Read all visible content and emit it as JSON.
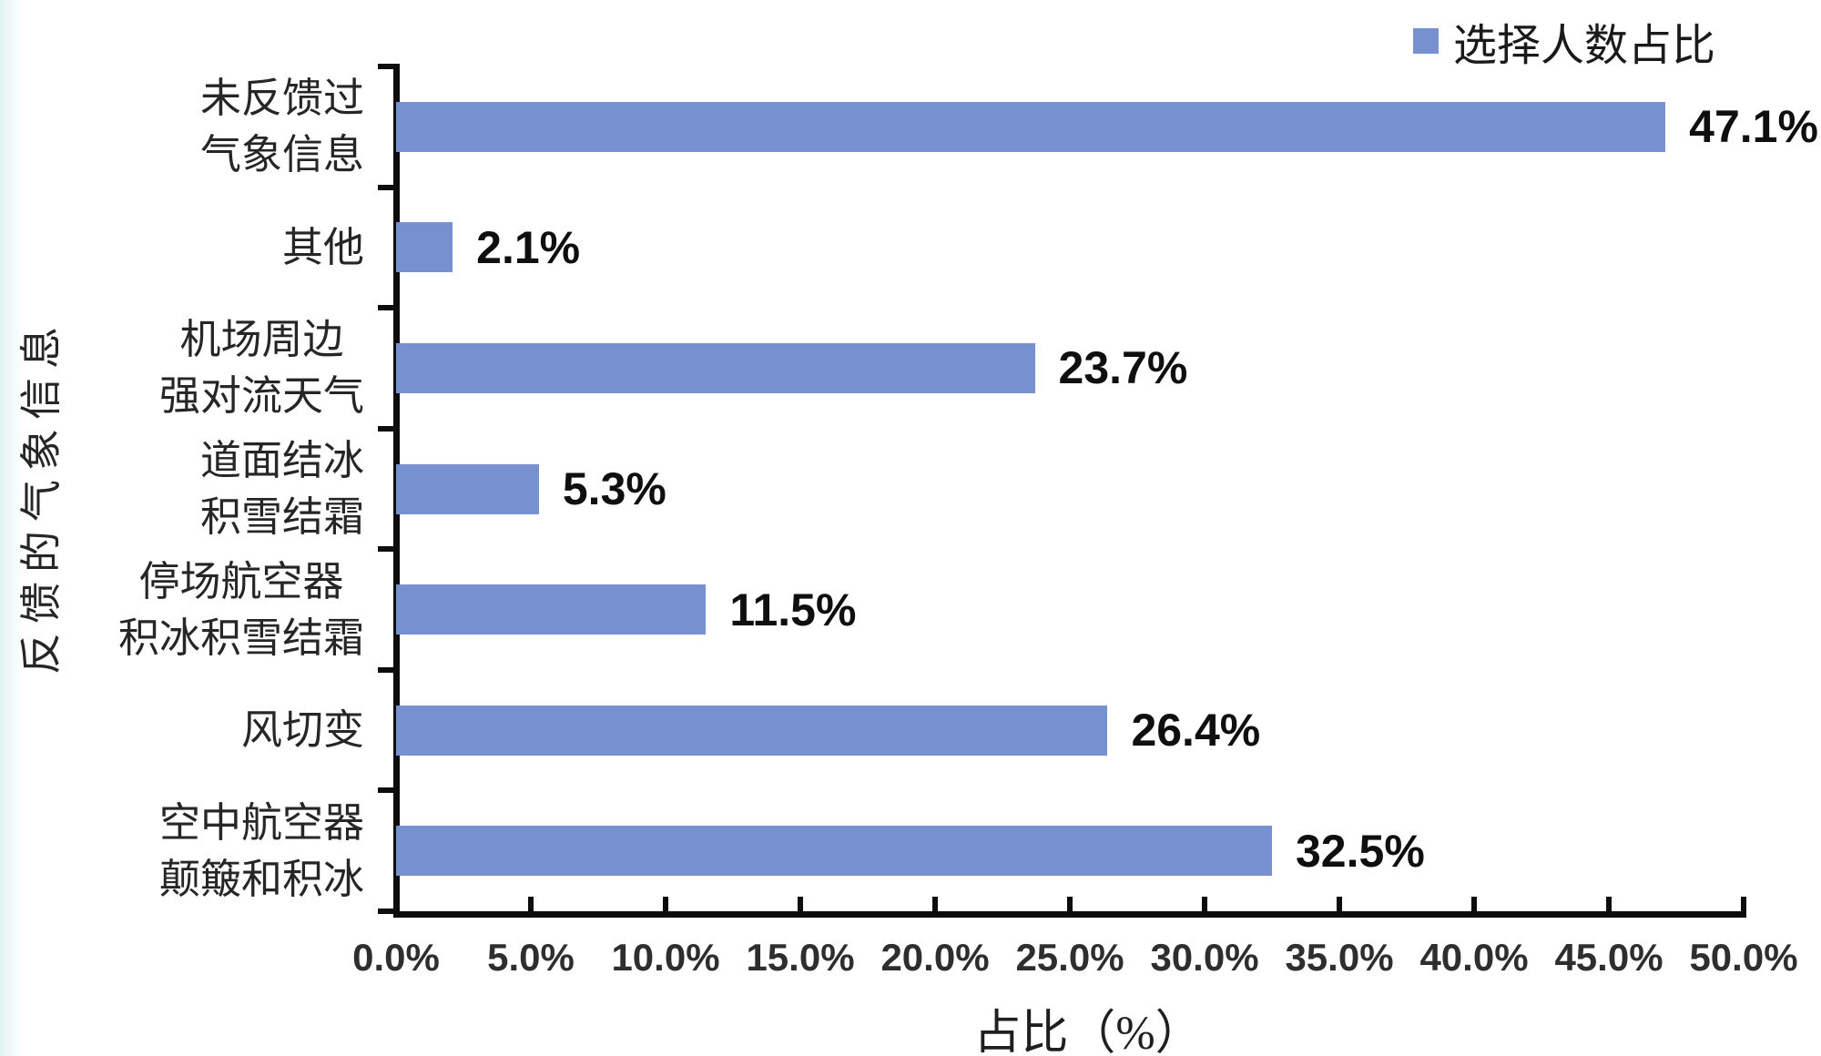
{
  "page": {
    "background": "#ffffff",
    "left_strip_color": "#e2f3f2"
  },
  "legend": {
    "label": "选择人数占比",
    "swatch_color": "#7690d0"
  },
  "chart_data": {
    "type": "bar",
    "orientation": "horizontal",
    "xlabel": "占比（%）",
    "ylabel": "反馈的气象信息",
    "legend_entries": [
      "选择人数占比"
    ],
    "legend_position": "top-right",
    "categories": [
      "未反馈过气象信息",
      "其他",
      "机场周边强对流天气",
      "道面结冰积雪结霜",
      "停场航空器积冰积雪结霜",
      "风切变",
      "空中航空器颠簸和积冰"
    ],
    "category_lines": [
      [
        "未反馈过",
        "气象信息"
      ],
      [
        "其他"
      ],
      [
        "机场周边",
        "强对流天气"
      ],
      [
        "道面结冰",
        "积雪结霜"
      ],
      [
        "停场航空器",
        "积冰积雪结霜"
      ],
      [
        "风切变"
      ],
      [
        "空中航空器",
        "颠簸和积冰"
      ]
    ],
    "series": [
      {
        "name": "选择人数占比",
        "values": [
          47.1,
          2.1,
          23.7,
          5.3,
          11.5,
          26.4,
          32.5
        ]
      }
    ],
    "value_labels": [
      "47.1%",
      "2.1%",
      "23.7%",
      "5.3%",
      "11.5%",
      "26.4%",
      "32.5%"
    ],
    "x_ticks": [
      "0.0%",
      "5.0%",
      "10.0%",
      "15.0%",
      "20.0%",
      "25.0%",
      "30.0%",
      "35.0%",
      "40.0%",
      "45.0%",
      "50.0%"
    ],
    "xlim": [
      0,
      50
    ],
    "grid": false,
    "bar_color": "#7690d0",
    "axis_color": "#0d0d0d"
  }
}
